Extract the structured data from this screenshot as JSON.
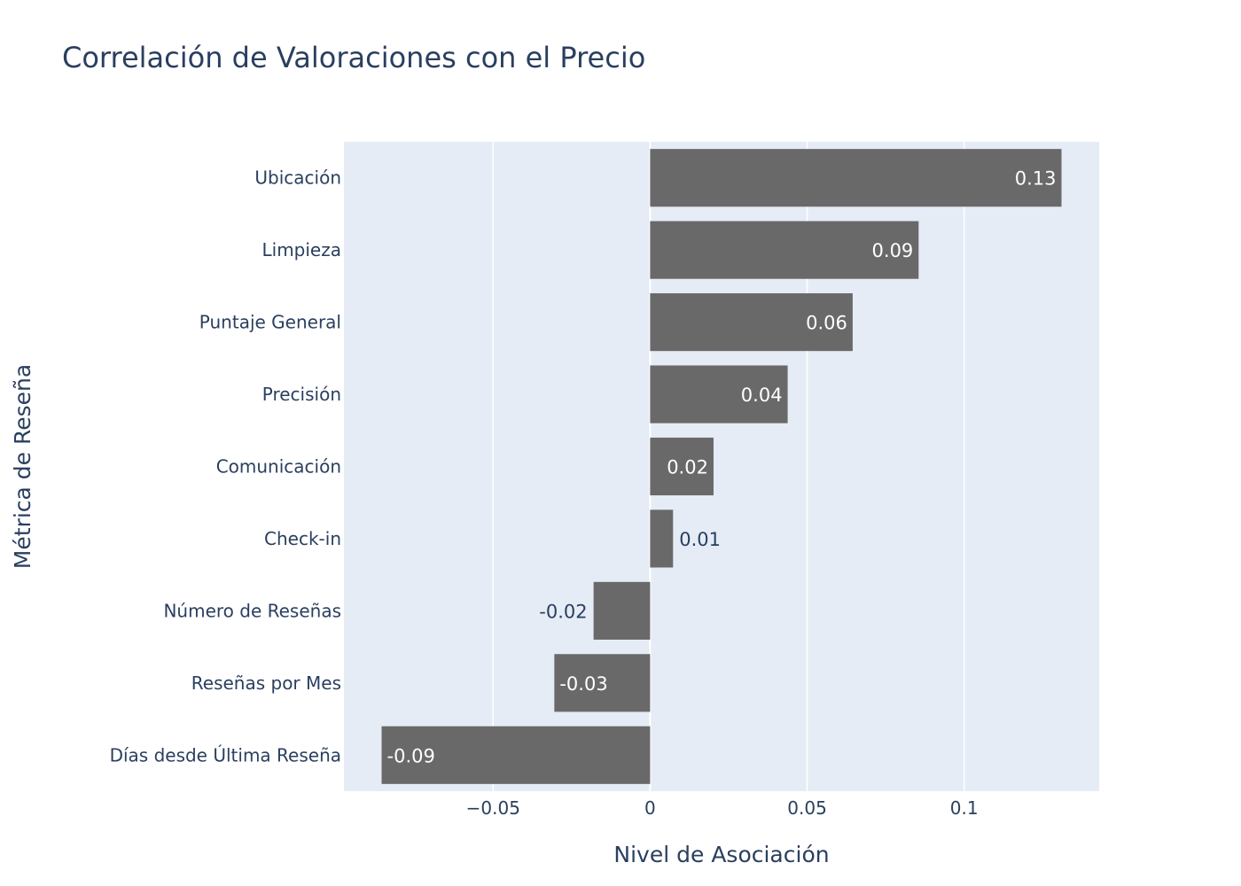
{
  "chart_data": {
    "type": "bar",
    "orientation": "horizontal",
    "title": "Correlación de Valoraciones con el Precio",
    "xlabel": "Nivel de Asociación",
    "ylabel": "Métrica de Reseña",
    "xlim": [
      -0.0975,
      0.143
    ],
    "xticks": [
      -0.05,
      0,
      0.05,
      0.1
    ],
    "xtick_labels": [
      "−0.05",
      "0",
      "0.05",
      "0.1"
    ],
    "grid": true,
    "categories": [
      "Ubicación",
      "Limpieza",
      "Puntaje General",
      "Precisión",
      "Comunicación",
      "Check-in",
      "Número de Reseñas",
      "Reseñas por Mes",
      "Días desde Última Reseña"
    ],
    "values": [
      0.131,
      0.0855,
      0.0645,
      0.0438,
      0.0202,
      0.0073,
      -0.018,
      -0.0305,
      -0.0855
    ],
    "value_labels": [
      "0.13",
      "0.09",
      "0.06",
      "0.04",
      "0.02",
      "0.01",
      "-0.02",
      "-0.03",
      "-0.09"
    ],
    "colors": {
      "bar": "#696969",
      "plot_bg": "#e5ecf6",
      "grid": "#ffffff",
      "text": "#2a3f5f",
      "label_inside": "#ffffff"
    }
  }
}
